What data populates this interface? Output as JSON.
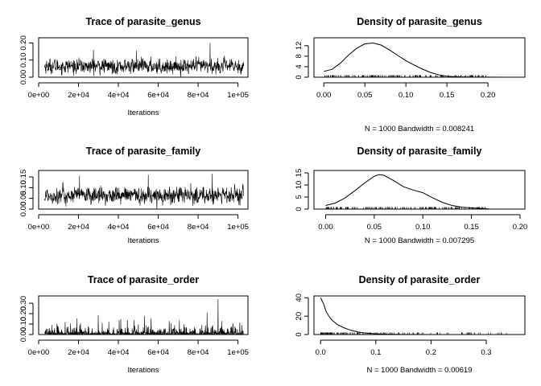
{
  "chart_data": [
    {
      "type": "line",
      "kind": "trace",
      "title": "Trace of parasite_genus",
      "xlabel": "Iterations",
      "xlim": [
        0,
        105000
      ],
      "ylim": [
        0,
        0.23
      ],
      "xticks": [
        0,
        20000,
        40000,
        60000,
        80000,
        100000
      ],
      "xtick_labels": [
        "0e+00",
        "2e+04",
        "4e+04",
        "6e+04",
        "8e+04",
        "1e+05"
      ],
      "yticks": [
        0,
        0.1,
        0.2
      ],
      "ytick_labels": [
        "0.00",
        "0.10",
        "0.20"
      ],
      "x_range": [
        3000,
        102900
      ],
      "n_samples": 1000,
      "mean": 0.064,
      "sd": 0.03,
      "min": 0.0,
      "max": 0.2,
      "spikes": [
        {
          "x": 86000,
          "y": 0.2
        },
        {
          "x": 27500,
          "y": 0.16
        },
        {
          "x": 49000,
          "y": 0.155
        }
      ]
    },
    {
      "type": "line",
      "kind": "density",
      "title": "Density of parasite_genus",
      "xlabel": "N = 1000   Bandwidth = 0.008241",
      "xlim": [
        -0.012,
        0.245
      ],
      "ylim": [
        0,
        15
      ],
      "xticks": [
        0,
        0.05,
        0.1,
        0.15,
        0.2
      ],
      "xtick_labels": [
        "0.00",
        "0.05",
        "0.10",
        "0.15",
        "0.20"
      ],
      "yticks": [
        0,
        4,
        8,
        12
      ],
      "ytick_labels": [
        "0",
        "4",
        "8",
        "12"
      ],
      "x": [
        0.0,
        0.01,
        0.02,
        0.03,
        0.04,
        0.05,
        0.06,
        0.07,
        0.08,
        0.09,
        0.1,
        0.11,
        0.12,
        0.13,
        0.14,
        0.15,
        0.16,
        0.17,
        0.18,
        0.2,
        0.22,
        0.24
      ],
      "y": [
        2.2,
        3.0,
        5.3,
        8.4,
        11.0,
        12.7,
        13.0,
        12.2,
        10.4,
        8.3,
        6.3,
        4.6,
        3.1,
        1.8,
        0.9,
        0.4,
        0.2,
        0.1,
        0.05,
        0.02,
        0.01,
        0.0
      ],
      "rug_max": 0.2
    },
    {
      "type": "line",
      "kind": "trace",
      "title": "Trace of parasite_family",
      "xlabel": "Iterations",
      "xlim": [
        0,
        105000
      ],
      "ylim": [
        0,
        0.18
      ],
      "xticks": [
        0,
        20000,
        40000,
        60000,
        80000,
        100000
      ],
      "xtick_labels": [
        "0e+00",
        "2e+04",
        "4e+04",
        "6e+04",
        "8e+04",
        "1e+05"
      ],
      "yticks": [
        0,
        0.05,
        0.1,
        0.15
      ],
      "ytick_labels": [
        "0.00",
        "0.05",
        "0.10",
        "0.15"
      ],
      "x_range": [
        3000,
        102900
      ],
      "n_samples": 1000,
      "mean": 0.063,
      "sd": 0.028,
      "min": 0.0,
      "max": 0.165,
      "spikes": [
        {
          "x": 87000,
          "y": 0.165
        },
        {
          "x": 55000,
          "y": 0.16
        },
        {
          "x": 20500,
          "y": 0.155
        }
      ]
    },
    {
      "type": "line",
      "kind": "density",
      "title": "Density of parasite_family",
      "xlabel": "N = 1000   Bandwidth = 0.007295",
      "xlim": [
        -0.012,
        0.205
      ],
      "ylim": [
        0,
        16
      ],
      "xticks": [
        0,
        0.05,
        0.1,
        0.15,
        0.2
      ],
      "xtick_labels": [
        "0.00",
        "0.05",
        "0.10",
        "0.15",
        "0.20"
      ],
      "yticks": [
        0,
        5,
        10,
        15
      ],
      "ytick_labels": [
        "0",
        "5",
        "10",
        "15"
      ],
      "x": [
        0.0,
        0.01,
        0.02,
        0.03,
        0.04,
        0.05,
        0.055,
        0.06,
        0.07,
        0.08,
        0.09,
        0.1,
        0.11,
        0.12,
        0.13,
        0.14,
        0.15,
        0.16,
        0.17
      ],
      "y": [
        1.5,
        2.5,
        4.6,
        7.6,
        10.8,
        13.6,
        14.3,
        14.0,
        11.8,
        9.3,
        7.9,
        6.8,
        4.7,
        2.8,
        1.5,
        0.8,
        0.5,
        0.3,
        0.0
      ],
      "rug_max": 0.165
    },
    {
      "type": "line",
      "kind": "trace",
      "title": "Trace of parasite_order",
      "xlabel": "Iterations",
      "xlim": [
        0,
        105000
      ],
      "ylim": [
        0,
        0.37
      ],
      "xticks": [
        0,
        20000,
        40000,
        60000,
        80000,
        100000
      ],
      "xtick_labels": [
        "0e+00",
        "2e+04",
        "4e+04",
        "6e+04",
        "8e+04",
        "1e+05"
      ],
      "yticks": [
        0,
        0.1,
        0.2,
        0.3
      ],
      "ytick_labels": [
        "0.00",
        "0.10",
        "0.20",
        "0.30"
      ],
      "x_range": [
        3000,
        102900
      ],
      "n_samples": 1000,
      "mean": 0.018,
      "sd": 0.02,
      "min": 0.0,
      "max": 0.34,
      "spikes": [
        {
          "x": 90000,
          "y": 0.34
        },
        {
          "x": 84500,
          "y": 0.21
        },
        {
          "x": 65500,
          "y": 0.13
        },
        {
          "x": 44500,
          "y": 0.14
        },
        {
          "x": 21000,
          "y": 0.11
        }
      ]
    },
    {
      "type": "line",
      "kind": "density",
      "title": "Density of parasite_order",
      "xlabel": "N = 1000   Bandwidth = 0.00619",
      "xlim": [
        -0.012,
        0.37
      ],
      "ylim": [
        0,
        42
      ],
      "xticks": [
        0,
        0.1,
        0.2,
        0.3
      ],
      "xtick_labels": [
        "0.0",
        "0.1",
        "0.2",
        "0.3"
      ],
      "yticks": [
        0,
        20,
        40
      ],
      "ytick_labels": [
        "0",
        "20",
        "40"
      ],
      "x": [
        0.0,
        0.005,
        0.01,
        0.015,
        0.02,
        0.03,
        0.04,
        0.05,
        0.06,
        0.07,
        0.08,
        0.1,
        0.12,
        0.15,
        0.2,
        0.25,
        0.3,
        0.34
      ],
      "y": [
        40.0,
        34.0,
        25.0,
        20.0,
        16.0,
        11.0,
        8.0,
        5.5,
        3.8,
        2.5,
        1.7,
        0.8,
        0.4,
        0.15,
        0.05,
        0.02,
        0.01,
        0.0
      ],
      "rug_max": 0.34
    }
  ]
}
